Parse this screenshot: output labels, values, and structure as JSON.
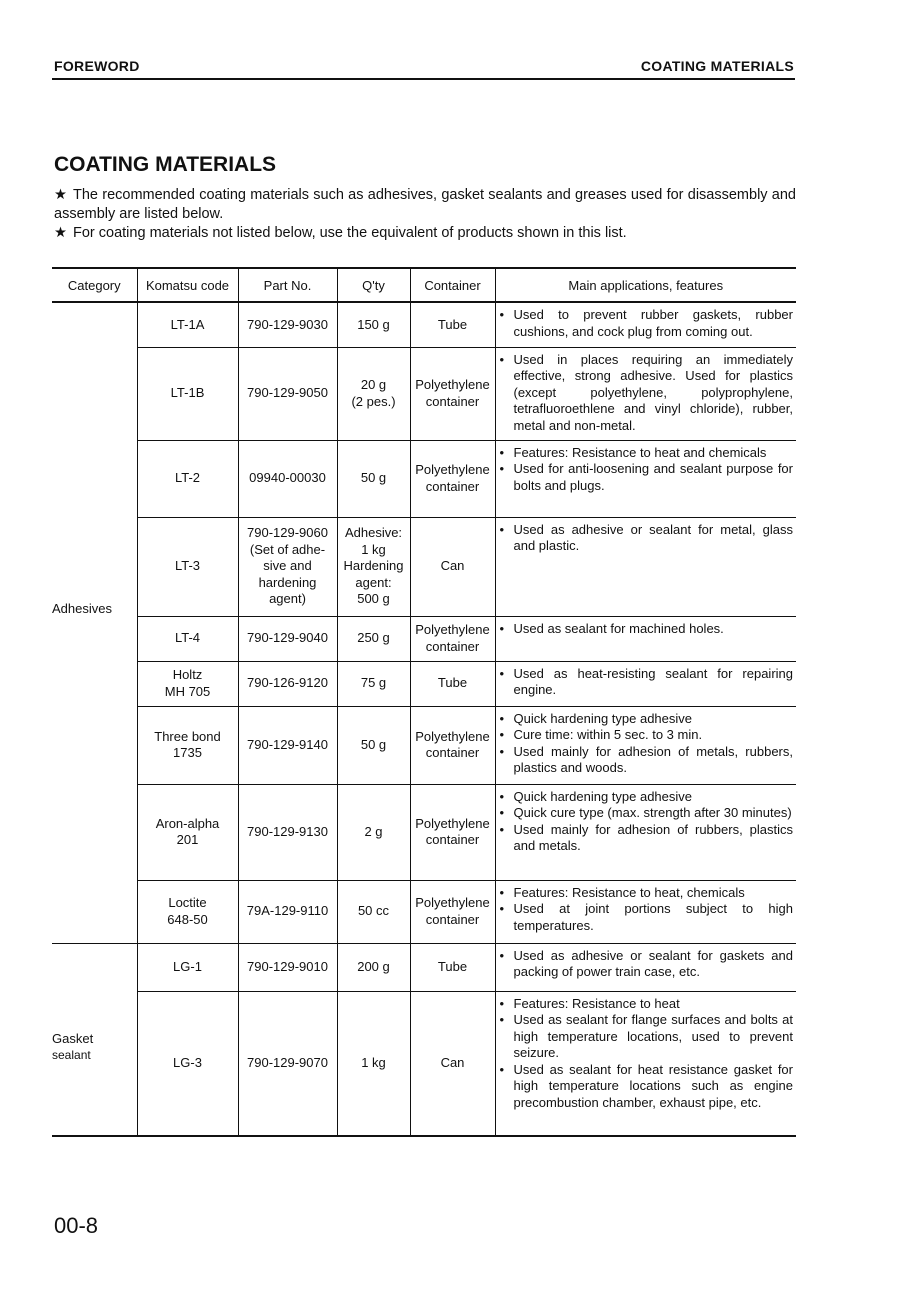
{
  "header": {
    "left": "FOREWORD",
    "right": "COATING MATERIALS"
  },
  "title": "COATING MATERIALS",
  "notes": [
    "The recommended coating materials such as adhesives, gasket sealants and greases used for disassembly and assembly are listed below.",
    "For coating materials not listed below, use the equivalent of products shown in this list."
  ],
  "star_symbol": "★",
  "table": {
    "columns": [
      "Category",
      "Komatsu code",
      "Part No.",
      "Q'ty",
      "Container",
      "Main applications, features"
    ],
    "categories": [
      {
        "label": "Adhesives",
        "rows": 9
      },
      {
        "label": "Gasket\nsealant",
        "rows": 2
      }
    ],
    "rows": [
      {
        "code": "LT-1A",
        "part": "790-129-9030",
        "qty": "150 g",
        "container": "Tube",
        "features": [
          "Used to prevent rubber gaskets, rubber cushions, and cock plug from coming out."
        ]
      },
      {
        "code": "LT-1B",
        "part": "790-129-9050",
        "qty": "20 g\n(2 pes.)",
        "container": "Polyethylene\ncontainer",
        "features": [
          "Used in places requiring an immediately effective, strong adhesive.  Used for plastics (except polyethylene, polyprophylene, tetrafluoroethlene and vinyl chloride), rubber, metal and non-metal."
        ]
      },
      {
        "code": "LT-2",
        "part": "09940-00030",
        "qty": "50 g",
        "container": "Polyethylene\ncontainer",
        "features": [
          "Features: Resistance to heat and chemicals",
          "Used for anti-loosening and sealant purpose for bolts and plugs."
        ]
      },
      {
        "code": "LT-3",
        "part": "790-129-9060\n(Set of adhe-\nsive and\nhardening\nagent)",
        "qty": "Adhesive:\n1 kg\nHardening\nagent:\n500 g",
        "container": "Can",
        "features": [
          "Used as adhesive or sealant for metal, glass and plastic."
        ]
      },
      {
        "code": "LT-4",
        "part": "790-129-9040",
        "qty": "250 g",
        "container": "Polyethylene\ncontainer",
        "features": [
          "Used as sealant for machined holes."
        ]
      },
      {
        "code": "Holtz\nMH 705",
        "part": "790-126-9120",
        "qty": "75 g",
        "container": "Tube",
        "features": [
          "Used as heat-resisting sealant for repairing engine."
        ]
      },
      {
        "code": "Three bond\n1735",
        "part": "790-129-9140",
        "qty": "50 g",
        "container": "Polyethylene\ncontainer",
        "features": [
          "Quick hardening type adhesive",
          "Cure time: within 5 sec. to 3 min.",
          "Used mainly for adhesion of metals, rubbers, plastics and woods."
        ]
      },
      {
        "code": "Aron-alpha\n201",
        "part": "790-129-9130",
        "qty": "2 g",
        "container": "Polyethylene\ncontainer",
        "features": [
          "Quick hardening type adhesive",
          "Quick cure type (max. strength after 30 minutes)",
          "Used mainly for adhesion of rubbers, plastics and metals."
        ]
      },
      {
        "code": "Loctite\n648-50",
        "part": "79A-129-9110",
        "qty": "50 cc",
        "container": "Polyethylene\ncontainer",
        "features": [
          "Features: Resistance to heat, chemicals",
          "Used at joint portions subject to high temperatures."
        ]
      },
      {
        "code": "LG-1",
        "part": "790-129-9010",
        "qty": "200 g",
        "container": "Tube",
        "features": [
          "Used as adhesive or sealant for gaskets and packing of power train case, etc."
        ]
      },
      {
        "code": "LG-3",
        "part": "790-129-9070",
        "qty": "1 kg",
        "container": "Can",
        "features": [
          "Features: Resistance to heat",
          "Used as sealant for flange surfaces and bolts at high temperature locations, used to prevent seizure.",
          "Used as sealant for heat resistance gasket for high temperature locations such as engine precombustion chamber, exhaust pipe, etc."
        ]
      }
    ]
  },
  "page_number": "00-8"
}
